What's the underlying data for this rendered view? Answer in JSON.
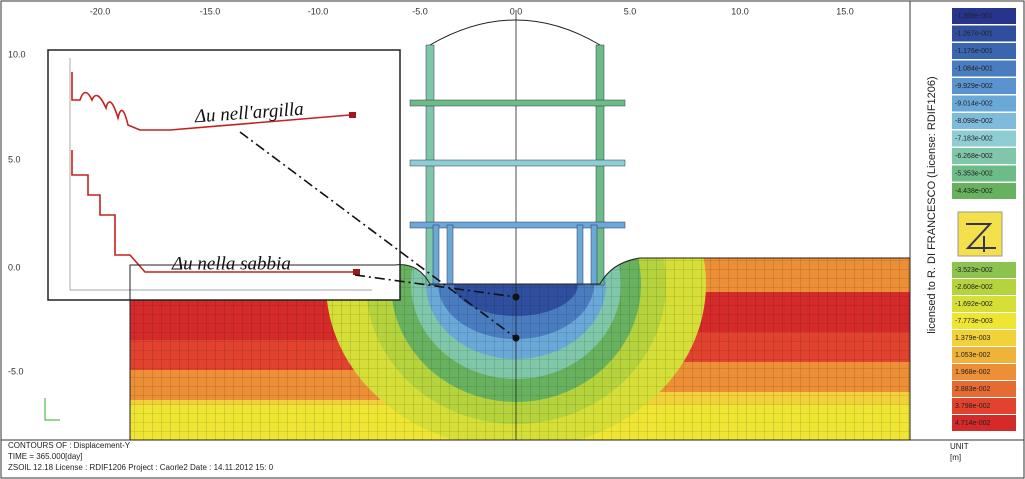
{
  "top_axis": [
    "-20.0",
    "-15.0",
    "-10.0",
    "-5.0",
    "0.0",
    "5.0",
    "10.0",
    "15.0"
  ],
  "left_axis": [
    "10.0",
    "5.0",
    "0.0",
    "-5.0"
  ],
  "annotations": {
    "clay": "Δu nell'argilla",
    "sand": "Δu nella sabbia"
  },
  "legend": [
    {
      "label": "-1.359e-001",
      "color": "#27348b"
    },
    {
      "label": "-1.267e-001",
      "color": "#2f4f9e"
    },
    {
      "label": "-1.176e-001",
      "color": "#3a66b0"
    },
    {
      "label": "-1.084e-001",
      "color": "#4a7cc0"
    },
    {
      "label": "-9.929e-002",
      "color": "#5a93cf"
    },
    {
      "label": "-9.014e-002",
      "color": "#6aa8d8"
    },
    {
      "label": "-8.098e-002",
      "color": "#7fbcdc"
    },
    {
      "label": "-7.183e-002",
      "color": "#8ecdd4"
    },
    {
      "label": "-6.268e-002",
      "color": "#7fc7a8"
    },
    {
      "label": "-5.353e-002",
      "color": "#6dbb86"
    },
    {
      "label": "-4.438e-002",
      "color": "#68b25f"
    },
    {
      "label": "-3.523e-002",
      "color": "#8cc24e"
    },
    {
      "label": "-2.608e-002",
      "color": "#b5d33d"
    },
    {
      "label": "-1.692e-002",
      "color": "#d6df37"
    },
    {
      "label": "-7.773e-003",
      "color": "#efe634"
    },
    {
      "label": "1.379e-003",
      "color": "#f2d23a"
    },
    {
      "label": "1.053e-002",
      "color": "#f0b33a"
    },
    {
      "label": "1.968e-002",
      "color": "#ec8f36"
    },
    {
      "label": "2.883e-002",
      "color": "#e86a33"
    },
    {
      "label": "3.798e-002",
      "color": "#e2432f"
    },
    {
      "label": "4.714e-002",
      "color": "#d42a2a"
    }
  ],
  "license": "licensed to R. DI FRANCESCO (License: RDIF1206)",
  "footer": {
    "line1": "CONTOURS OF : Displacement-Y",
    "line2": "TIME = 365.000[day]",
    "line3": "ZSOIL 12.18   License :  RDIF1206   Project : Caorle2    Date : 14.11.2012  15: 0"
  },
  "unit": {
    "label": "UNIT",
    "value": "[m]"
  }
}
